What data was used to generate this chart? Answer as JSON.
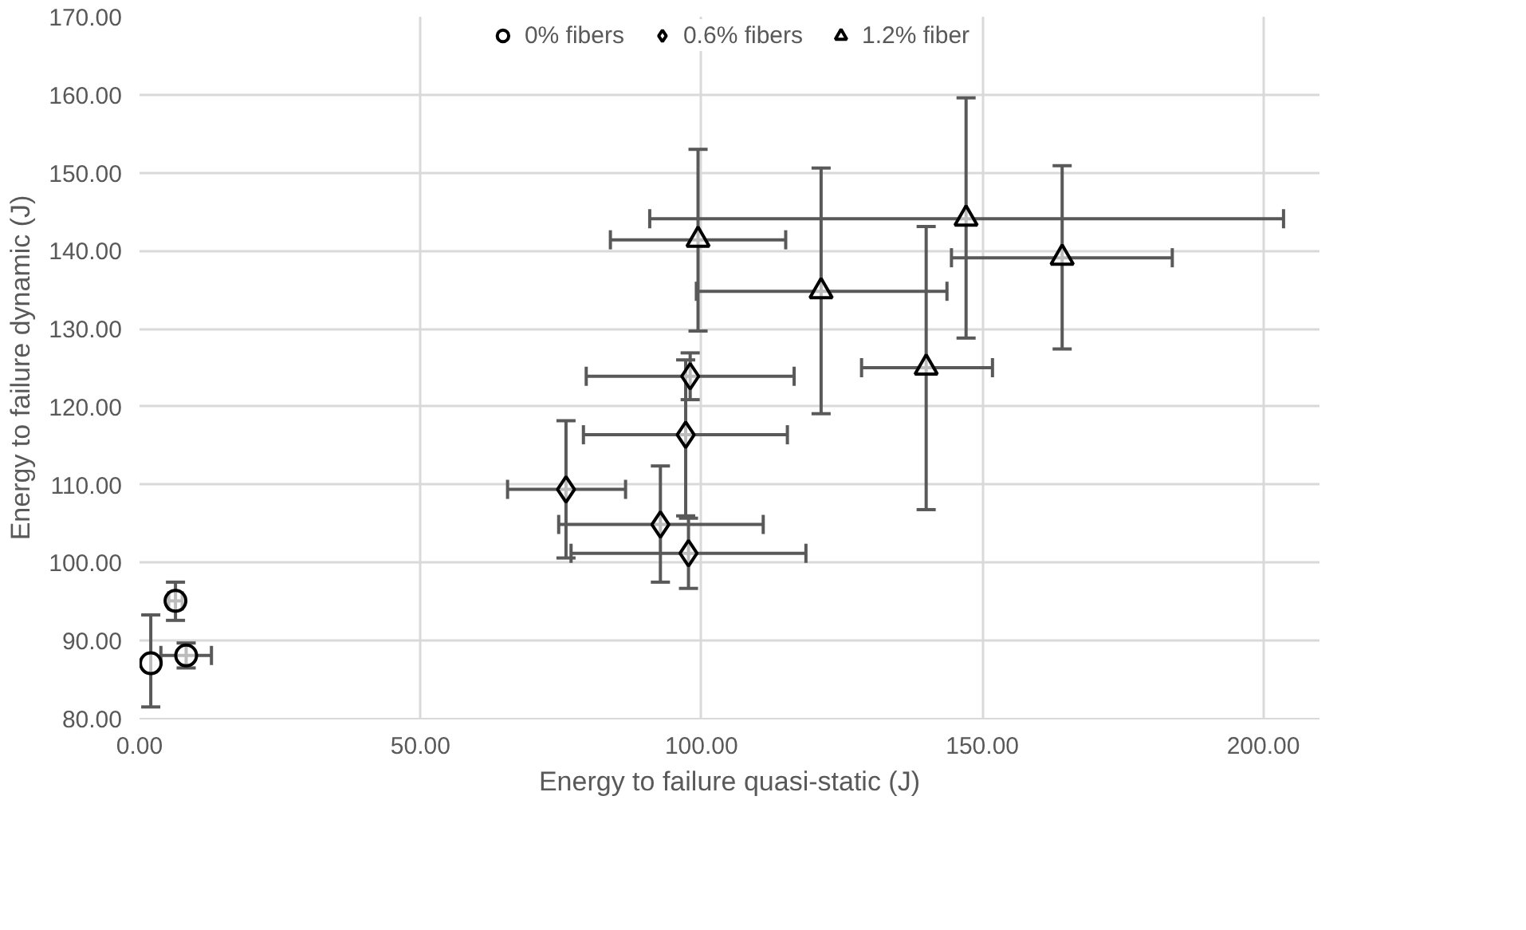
{
  "chart_data": {
    "type": "scatter",
    "xlabel": "Energy to failure quasi-static (J)",
    "ylabel": "Energy to failure dynamic (J)",
    "xlim": [
      0,
      210
    ],
    "xticks": [
      {
        "value": 0,
        "label": "0.00"
      },
      {
        "value": 50,
        "label": "50.00"
      },
      {
        "value": 100,
        "label": "100.00"
      },
      {
        "value": 150,
        "label": "150.00"
      },
      {
        "value": 200,
        "label": "200.00"
      }
    ],
    "ylim": [
      80,
      170
    ],
    "yticks": [
      {
        "value": 80,
        "label": "80.00"
      },
      {
        "value": 90,
        "label": "90.00"
      },
      {
        "value": 100,
        "label": "100.00"
      },
      {
        "value": 110,
        "label": "110.00"
      },
      {
        "value": 120,
        "label": "120.00"
      },
      {
        "value": 130,
        "label": "130.00"
      },
      {
        "value": 140,
        "label": "140.00"
      },
      {
        "value": 150,
        "label": "150.00"
      },
      {
        "value": 160,
        "label": "160.00"
      },
      {
        "value": 170,
        "label": "170.00"
      }
    ],
    "grid": true,
    "legend": "top",
    "series": [
      {
        "name": "0% fibers",
        "marker": "circle",
        "color": "#000000",
        "x": [
          2.0,
          6.4,
          8.3
        ],
        "values": [
          87.1,
          95.1,
          88.1
        ],
        "errors": [
          [
            81.5,
            93.3
          ],
          [
            92.6,
            97.5
          ],
          [
            86.5,
            89.7
          ]
        ],
        "xerrors": [
          null,
          [
            5.2,
            7.6
          ],
          [
            3.8,
            12.8
          ]
        ]
      },
      {
        "name": "0.6% fibers",
        "marker": "diamond",
        "color": "#000000",
        "x": [
          98.0,
          97.2,
          75.9,
          92.7,
          97.7
        ],
        "values": [
          123.9,
          116.4,
          109.4,
          104.9,
          101.2
        ],
        "errors": [
          [
            120.9,
            126.9
          ],
          [
            106.0,
            126.0
          ],
          [
            100.6,
            118.2
          ],
          [
            97.5,
            112.4
          ],
          [
            96.7,
            105.7
          ]
        ],
        "xerrors": [
          [
            79.5,
            116.5
          ],
          [
            79.0,
            115.3
          ],
          [
            65.5,
            86.5
          ],
          [
            74.6,
            111.0
          ],
          [
            76.8,
            118.6
          ]
        ]
      },
      {
        "name": "1.2% fiber",
        "marker": "triangle",
        "color": "#000000",
        "x": [
          99.4,
          147.1,
          121.3,
          140.0,
          164.2
        ],
        "values": [
          141.4,
          144.1,
          134.8,
          125.0,
          139.1
        ],
        "errors": [
          [
            129.7,
            153.0
          ],
          [
            128.8,
            159.6
          ],
          [
            119.1,
            150.6
          ],
          [
            106.8,
            143.1
          ],
          [
            127.4,
            150.9
          ]
        ],
        "xerrors": [
          [
            83.8,
            115.0
          ],
          [
            90.8,
            203.6
          ],
          [
            99.1,
            143.7
          ],
          [
            128.5,
            151.8
          ],
          [
            144.5,
            183.8
          ]
        ]
      }
    ]
  }
}
